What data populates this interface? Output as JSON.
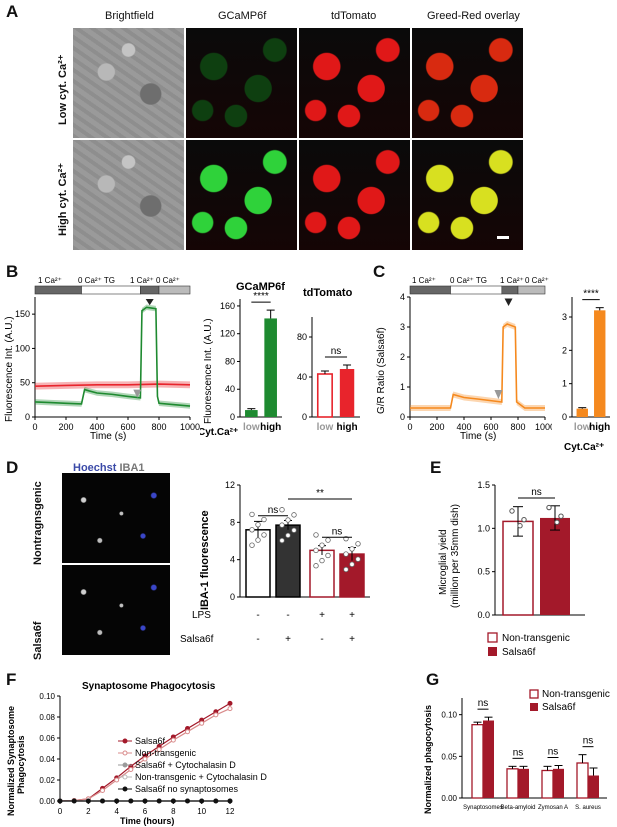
{
  "panels": {
    "A": {
      "letter": "A",
      "col_labels": [
        "Brightfield",
        "GCaMP6f",
        "tdTomato",
        "Greed-Red overlay"
      ],
      "row_labels": [
        "Low cyt. Ca²⁺",
        "High cyt. Ca²⁺"
      ],
      "channel_colors": {
        "brightfield": "#8c8c8c",
        "green_low": "#0e3f10",
        "green_high": "#2fd23a",
        "red": "#e01818",
        "overlay_low": "#d82a10",
        "overlay_high": "#d8e020"
      }
    },
    "B": {
      "letter": "B",
      "protocol": [
        "1 Ca²⁺",
        "0 Ca²⁺ TG",
        "1 Ca²⁺",
        "0 Ca²⁺"
      ],
      "trace": {
        "ylabel": "Fluorescence Int. (A.U.)",
        "xlabel": "Time (s)",
        "x_ticks": [
          "0",
          "200",
          "400",
          "600",
          "800",
          "1000"
        ],
        "y_ticks": [
          "0",
          "50",
          "100",
          "150"
        ],
        "xlim": [
          0,
          1000
        ],
        "ylim": [
          0,
          175
        ],
        "green_points": [
          [
            0,
            22
          ],
          [
            100,
            21
          ],
          [
            200,
            20
          ],
          [
            300,
            19
          ],
          [
            320,
            40
          ],
          [
            350,
            38
          ],
          [
            400,
            35
          ],
          [
            500,
            33
          ],
          [
            600,
            30
          ],
          [
            680,
            28
          ],
          [
            690,
            155
          ],
          [
            720,
            160
          ],
          [
            780,
            158
          ],
          [
            790,
            30
          ],
          [
            800,
            20
          ],
          [
            900,
            18
          ],
          [
            1000,
            16
          ]
        ],
        "red_points": [
          [
            0,
            45
          ],
          [
            200,
            46
          ],
          [
            400,
            47
          ],
          [
            600,
            47
          ],
          [
            800,
            48
          ],
          [
            1000,
            47
          ]
        ]
      },
      "gcamp_bar": {
        "title": "GCaMP6f",
        "ylabel": "Fluorescence Int. (A.U.)",
        "y_ticks": [
          "0",
          "40",
          "80",
          "120",
          "160"
        ],
        "ylim": [
          0,
          170
        ],
        "categories": [
          "low",
          "high"
        ],
        "values": [
          10,
          142
        ],
        "errors": [
          2,
          12
        ],
        "sig": "****",
        "xlabel": "Cyt.Ca²⁺"
      },
      "tdtomato_bar": {
        "title": "tdTomato",
        "y_ticks": [
          "0",
          "40",
          "80"
        ],
        "ylim": [
          0,
          100
        ],
        "categories": [
          "low",
          "high"
        ],
        "values": [
          43,
          48
        ],
        "errors": [
          3,
          4
        ],
        "sig": "ns"
      }
    },
    "C": {
      "letter": "C",
      "protocol": [
        "1 Ca²⁺",
        "0 Ca²⁺ TG",
        "1 Ca²⁺",
        "0 Ca²⁺"
      ],
      "trace": {
        "ylabel": "G/R Ratio (Salsa6f)",
        "xlabel": "Time (s)",
        "x_ticks": [
          "0",
          "200",
          "400",
          "600",
          "800",
          "1000"
        ],
        "y_ticks": [
          "0",
          "1",
          "2",
          "3",
          "4"
        ],
        "xlim": [
          0,
          1000
        ],
        "ylim": [
          0,
          4
        ],
        "points": [
          [
            0,
            0.3
          ],
          [
            300,
            0.3
          ],
          [
            320,
            0.75
          ],
          [
            400,
            0.65
          ],
          [
            500,
            0.6
          ],
          [
            680,
            0.5
          ],
          [
            690,
            3.0
          ],
          [
            720,
            3.1
          ],
          [
            780,
            3.0
          ],
          [
            790,
            0.5
          ],
          [
            850,
            0.3
          ],
          [
            1000,
            0.3
          ]
        ]
      },
      "bar": {
        "y_ticks": [
          "0",
          "1",
          "2",
          "3"
        ],
        "ylim": [
          0,
          3.6
        ],
        "categories": [
          "low",
          "high"
        ],
        "values": [
          0.25,
          3.2
        ],
        "errors": [
          0.03,
          0.08
        ],
        "sig": "****",
        "xlabel": "Cyt.Ca²⁺"
      }
    },
    "D": {
      "letter": "D",
      "stain_label_1": "Hoechst",
      "stain_label_2": "IBA1",
      "row_labels": [
        "Nontragnsgenic",
        "Salsa6f"
      ],
      "ylabel": "IBA-1 fluorescence",
      "y_ticks": [
        "0",
        "4",
        "8",
        "12"
      ],
      "ylim": [
        0,
        12
      ],
      "values": [
        7.2,
        7.7,
        5.0,
        4.6
      ],
      "errors": [
        0.9,
        0.5,
        0.5,
        0.7
      ],
      "sig": [
        "ns",
        "**",
        "ns"
      ],
      "lps_label": "LPS",
      "salsa_label": "Salsa6f",
      "lps": [
        "-",
        "-",
        "+",
        "+"
      ],
      "salsa": [
        "-",
        "+",
        "-",
        "+"
      ]
    },
    "E": {
      "letter": "E",
      "ylabel": "Microglial yield",
      "ylabel2": "(million per 35mm dish)",
      "y_ticks": [
        "0.0",
        "0.5",
        "1.0",
        "1.5"
      ],
      "ylim": [
        0,
        1.5
      ],
      "values": [
        1.08,
        1.12
      ],
      "errors": [
        0.17,
        0.14
      ],
      "sig": "ns",
      "legend": [
        "Non-transgenic",
        "Salsa6f"
      ]
    },
    "F": {
      "letter": "F",
      "title": "Synaptosome Phagocytosis",
      "ylabel": "Normalized Synaptosome",
      "ylabel2": "Phagocytosis",
      "xlabel": "Time (hours)",
      "x_ticks": [
        "0",
        "2",
        "4",
        "6",
        "8",
        "10",
        "12"
      ],
      "y_ticks": [
        "0.00",
        "0.02",
        "0.04",
        "0.06",
        "0.08",
        "0.10"
      ],
      "xlim": [
        0,
        12
      ],
      "ylim": [
        0,
        0.1
      ],
      "legend": [
        "Salsa6f",
        "Non-transgenic",
        "Salsa6f + Cytochalasin D",
        "Non-transgenic + Cytochalasin D",
        "Salsa6f no synaptosomes"
      ],
      "x": [
        0,
        1,
        2,
        3,
        4,
        5,
        6,
        7,
        8,
        9,
        10,
        11,
        12
      ],
      "series_values": [
        [
          0,
          0.0005,
          0.002,
          0.012,
          0.022,
          0.033,
          0.043,
          0.052,
          0.061,
          0.069,
          0.077,
          0.085,
          0.093
        ],
        [
          0,
          0.0005,
          0.002,
          0.01,
          0.02,
          0.03,
          0.04,
          0.049,
          0.058,
          0.066,
          0.074,
          0.082,
          0.088
        ],
        [
          0,
          0,
          0,
          0,
          0,
          0,
          0,
          0,
          0,
          0,
          0,
          0,
          0
        ],
        [
          0,
          0,
          0,
          0,
          0,
          0,
          0,
          0,
          0,
          0,
          0,
          0,
          0
        ],
        [
          0,
          0,
          0,
          0,
          0,
          0,
          0,
          0,
          0,
          0,
          0,
          0,
          0
        ]
      ]
    },
    "G": {
      "letter": "G",
      "ylabel": "Normalized phagocytosis",
      "y_ticks": [
        "0.00",
        "0.05",
        "0.10"
      ],
      "ylim": [
        0,
        0.12
      ],
      "categories": [
        "Synaptosomes",
        "Beta-amyloid",
        "Zymosan A",
        "S. aureus"
      ],
      "series": [
        {
          "name": "Non-transgenic",
          "values": [
            0.088,
            0.035,
            0.033,
            0.042
          ],
          "errors": [
            0.003,
            0.003,
            0.005,
            0.01
          ]
        },
        {
          "name": "Salsa6f",
          "values": [
            0.093,
            0.035,
            0.035,
            0.027
          ],
          "errors": [
            0.004,
            0.003,
            0.004,
            0.009
          ]
        }
      ],
      "sig": [
        "ns",
        "ns",
        "ns",
        "ns"
      ]
    }
  },
  "colors": {
    "green": "#1e8a30",
    "red": "#e8242c",
    "orange": "#f5891e",
    "darkred": "#a3192a",
    "darkgray": "#333333",
    "gray": "#999999"
  }
}
